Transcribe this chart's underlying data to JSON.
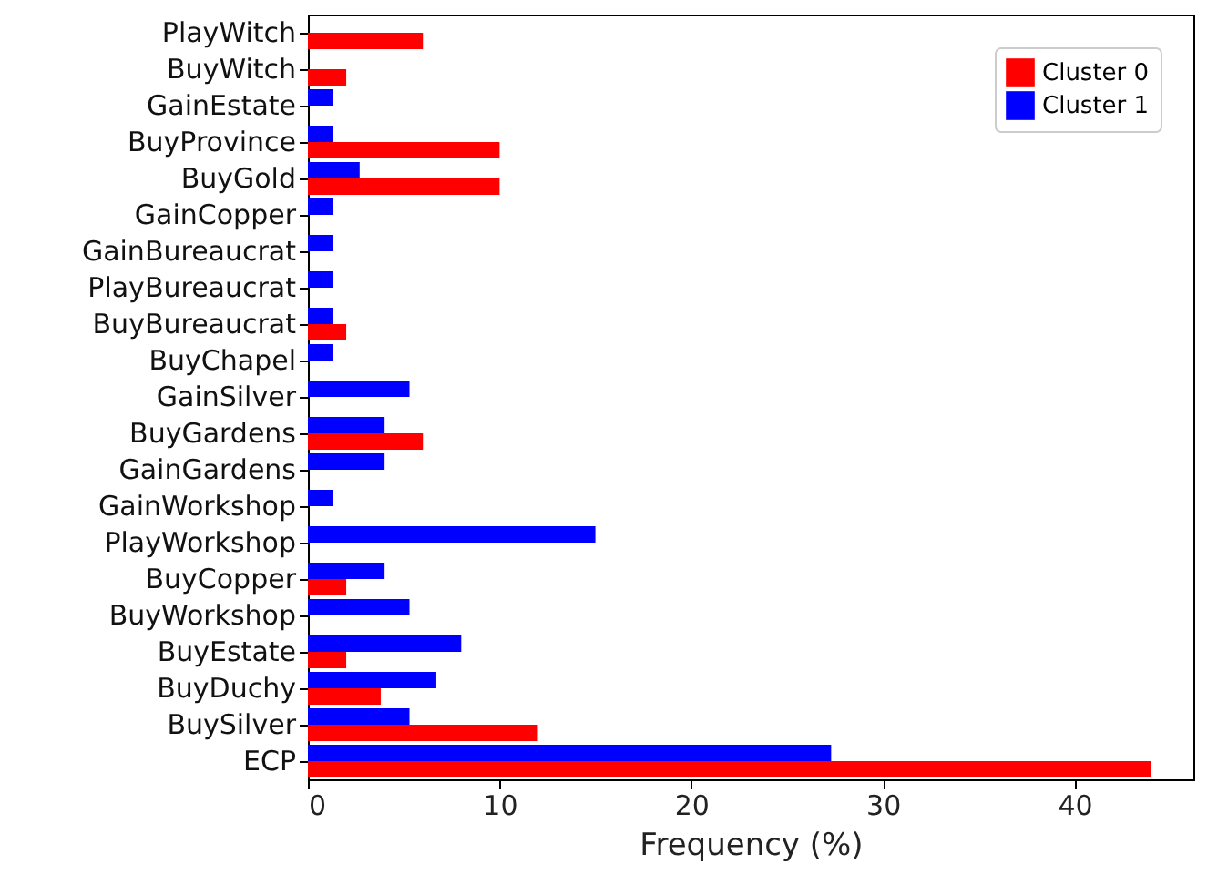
{
  "chart_data": {
    "type": "bar",
    "orientation": "horizontal",
    "xlabel": "Frequency (%)",
    "categories": [
      "PlayWitch",
      "BuyWitch",
      "GainEstate",
      "BuyProvince",
      "BuyGold",
      "GainCopper",
      "GainBureaucrat",
      "PlayBureaucrat",
      "BuyBureaucrat",
      "BuyChapel",
      "GainSilver",
      "BuyGardens",
      "GainGardens",
      "GainWorkshop",
      "PlayWorkshop",
      "BuyCopper",
      "BuyWorkshop",
      "BuyEstate",
      "BuyDuchy",
      "BuySilver",
      "ECP"
    ],
    "series": [
      {
        "name": "Cluster 0",
        "color": "#ff0000",
        "values": [
          6,
          2,
          null,
          10,
          10,
          null,
          null,
          null,
          2,
          null,
          null,
          6,
          null,
          null,
          null,
          2,
          null,
          2,
          3.8,
          12,
          44
        ]
      },
      {
        "name": "Cluster 1",
        "color": "#0000ff",
        "values": [
          null,
          null,
          1.3,
          1.3,
          2.7,
          1.3,
          1.3,
          1.3,
          1.3,
          1.3,
          5.3,
          4,
          4,
          1.3,
          15,
          4,
          5.3,
          8,
          6.7,
          5.3,
          27.3
        ]
      }
    ],
    "xlim": [
      0,
      46.2
    ],
    "xticks": [
      0,
      10,
      20,
      30,
      40
    ],
    "grid": false,
    "legend": "top right"
  }
}
